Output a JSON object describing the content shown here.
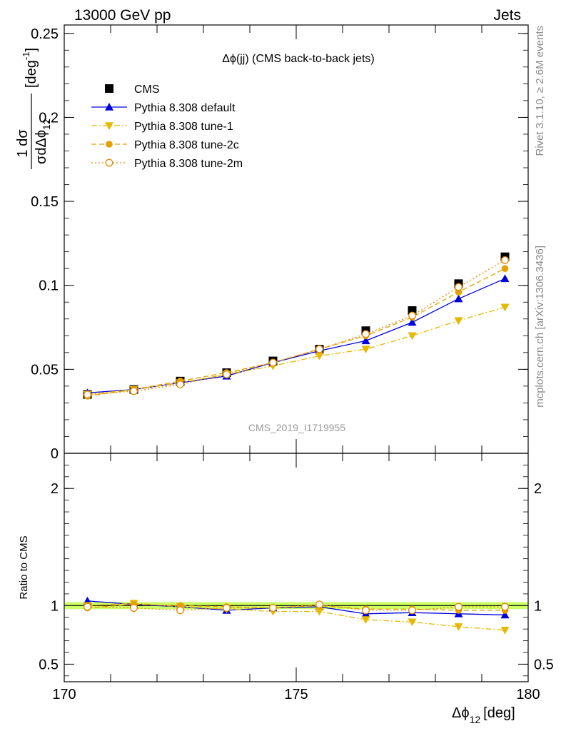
{
  "header": {
    "left": "13000 GeV pp",
    "right": "Jets"
  },
  "side_text": {
    "rivet": "Rivet 3.1.10, ≥ 2.6M events",
    "mcplots": "mcplots.cern.ch [arXiv:1306.3436]"
  },
  "legend_title": "Δϕ(jj) (CMS back-to-back jets)",
  "watermark": "CMS_2019_I1719955",
  "axis_labels": {
    "top_y": "1/σ dσ/dΔϕ₁₂ [deg⁻¹]",
    "bottom_y": "Ratio to CMS",
    "x_main": "Δϕ",
    "x_sub": "12",
    "x_unit": "[deg]"
  },
  "chart_data": [
    {
      "type": "scatter",
      "panel": "main",
      "xlim": [
        170,
        180
      ],
      "ylim": [
        0,
        0.255
      ],
      "yticks": [
        {
          "v": 0,
          "label": "0"
        },
        {
          "v": 0.05,
          "label": "0.05"
        },
        {
          "v": 0.1,
          "label": "0.1"
        },
        {
          "v": 0.15,
          "label": "0.15"
        },
        {
          "v": 0.2,
          "label": "0.2"
        },
        {
          "v": 0.25,
          "label": "0.25"
        }
      ],
      "x": [
        170.5,
        171.5,
        172.5,
        173.5,
        174.5,
        175.5,
        176.5,
        177.5,
        178.5,
        179.5
      ],
      "series": [
        {
          "name": "CMS",
          "color": "#000000",
          "marker": "square-filled",
          "line": "none",
          "values": [
            0.035,
            0.038,
            0.043,
            0.048,
            0.055,
            0.062,
            0.073,
            0.085,
            0.101,
            0.117
          ]
        },
        {
          "name": "Pythia 8.308 default",
          "color": "#0000dd",
          "marker": "triangle-up-filled",
          "line": "solid",
          "values": [
            0.036,
            0.038,
            0.042,
            0.046,
            0.054,
            0.061,
            0.067,
            0.078,
            0.092,
            0.104
          ]
        },
        {
          "name": "Pythia 8.308 tune-1",
          "color": "#e6b800",
          "marker": "triangle-down-filled",
          "line": "dashdot",
          "values": [
            0.035,
            0.038,
            0.042,
            0.047,
            0.052,
            0.058,
            0.062,
            0.07,
            0.079,
            0.087
          ]
        },
        {
          "name": "Pythia 8.308 tune-2c",
          "color": "#e6a000",
          "marker": "circle-filled",
          "line": "dashed",
          "values": [
            0.034,
            0.038,
            0.043,
            0.048,
            0.054,
            0.062,
            0.07,
            0.081,
            0.096,
            0.11
          ]
        },
        {
          "name": "Pythia 8.308 tune-2m",
          "color": "#e68a00",
          "marker": "circle-open",
          "line": "dotted",
          "values": [
            0.035,
            0.037,
            0.041,
            0.047,
            0.054,
            0.062,
            0.071,
            0.082,
            0.099,
            0.115
          ]
        }
      ]
    },
    {
      "type": "line",
      "panel": "ratio",
      "xlim": [
        170,
        180
      ],
      "ylim": [
        0.35,
        2.3
      ],
      "yticks": [
        {
          "v": 0.5,
          "label": "0.5"
        },
        {
          "v": 1,
          "label": "1"
        },
        {
          "v": 2,
          "label": "2"
        }
      ],
      "xticks": [
        {
          "v": 170,
          "label": "170"
        },
        {
          "v": 175,
          "label": "175"
        },
        {
          "v": 180,
          "label": "180"
        }
      ],
      "x": [
        170.5,
        171.5,
        172.5,
        173.5,
        174.5,
        175.5,
        176.5,
        177.5,
        178.5,
        179.5
      ],
      "band": {
        "lo": 0.97,
        "hi": 1.03,
        "color": "#ccff66"
      },
      "series": [
        {
          "name": "Pythia 8.308 default",
          "color": "#0000dd",
          "marker": "triangle-up-filled",
          "line": "solid",
          "values": [
            1.04,
            1.01,
            0.99,
            0.96,
            0.98,
            0.99,
            0.93,
            0.94,
            0.93,
            0.92
          ]
        },
        {
          "name": "Pythia 8.308 tune-1",
          "color": "#e6b800",
          "marker": "triangle-down-filled",
          "line": "dashdot",
          "values": [
            1.0,
            1.02,
            0.99,
            0.97,
            0.95,
            0.95,
            0.88,
            0.86,
            0.82,
            0.79
          ]
        },
        {
          "name": "Pythia 8.308 tune-2c",
          "color": "#e6a000",
          "marker": "circle-filled",
          "line": "dashed",
          "values": [
            0.98,
            1.01,
            1.0,
            0.99,
            0.98,
            1.0,
            0.97,
            0.97,
            0.96,
            0.96
          ]
        },
        {
          "name": "Pythia 8.308 tune-2m",
          "color": "#e68a00",
          "marker": "circle-open",
          "line": "dotted",
          "values": [
            0.99,
            0.98,
            0.96,
            0.98,
            0.98,
            1.01,
            0.96,
            0.96,
            0.99,
            0.99
          ]
        }
      ]
    }
  ]
}
